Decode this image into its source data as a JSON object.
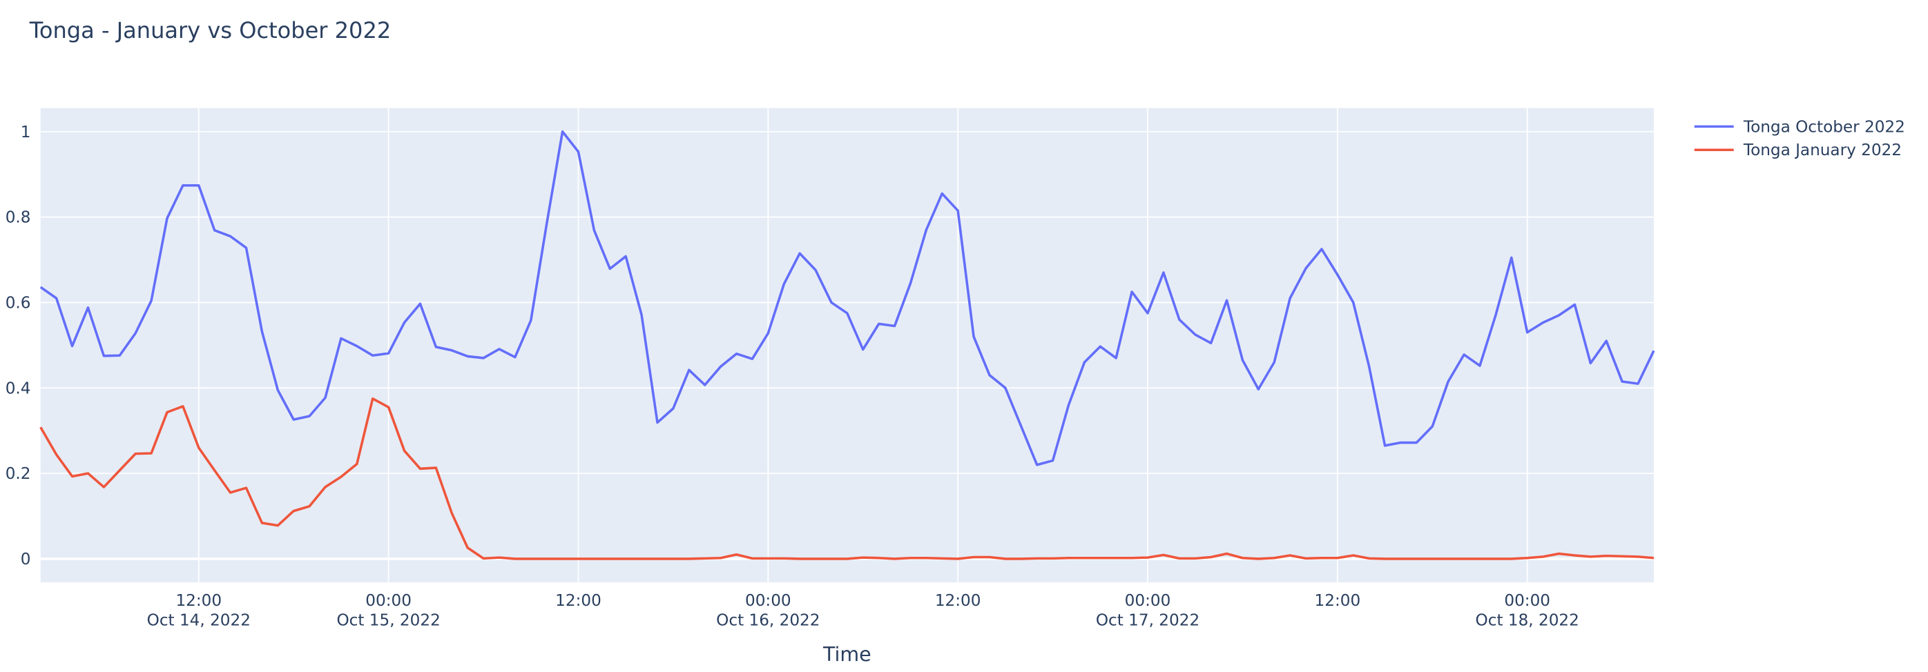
{
  "chart_data": {
    "type": "line",
    "title": "Tonga - January vs October 2022",
    "xlabel": "Time",
    "ylabel": "",
    "xlim": [
      "2022-10-14T02:00",
      "2022-10-18T08:00"
    ],
    "ylim": [
      -0.055,
      1.055
    ],
    "grid": true,
    "legend_position": "top-right, outside plot",
    "plot_background": "#e5ecf6",
    "yticks": [
      0,
      0.2,
      0.4,
      0.6,
      0.8,
      1
    ],
    "ytick_labels": [
      "0",
      "0.2",
      "0.4",
      "0.6",
      "0.8",
      "1"
    ],
    "xticks": [
      {
        "t": "2022-10-14T12:00",
        "line1": "12:00",
        "line2": "Oct 14, 2022"
      },
      {
        "t": "2022-10-15T00:00",
        "line1": "00:00",
        "line2": "Oct 15, 2022"
      },
      {
        "t": "2022-10-15T12:00",
        "line1": "12:00",
        "line2": ""
      },
      {
        "t": "2022-10-16T00:00",
        "line1": "00:00",
        "line2": "Oct 16, 2022"
      },
      {
        "t": "2022-10-16T12:00",
        "line1": "12:00",
        "line2": ""
      },
      {
        "t": "2022-10-17T00:00",
        "line1": "00:00",
        "line2": "Oct 17, 2022"
      },
      {
        "t": "2022-10-17T12:00",
        "line1": "12:00",
        "line2": ""
      },
      {
        "t": "2022-10-18T00:00",
        "line1": "00:00",
        "line2": "Oct 18, 2022"
      }
    ],
    "x": [
      "2022-10-14T02:00",
      "2022-10-14T03:00",
      "2022-10-14T04:00",
      "2022-10-14T05:00",
      "2022-10-14T06:00",
      "2022-10-14T07:00",
      "2022-10-14T08:00",
      "2022-10-14T09:00",
      "2022-10-14T10:00",
      "2022-10-14T11:00",
      "2022-10-14T12:00",
      "2022-10-14T13:00",
      "2022-10-14T14:00",
      "2022-10-14T15:00",
      "2022-10-14T16:00",
      "2022-10-14T17:00",
      "2022-10-14T18:00",
      "2022-10-14T19:00",
      "2022-10-14T20:00",
      "2022-10-14T21:00",
      "2022-10-14T22:00",
      "2022-10-14T23:00",
      "2022-10-15T00:00",
      "2022-10-15T01:00",
      "2022-10-15T02:00",
      "2022-10-15T03:00",
      "2022-10-15T04:00",
      "2022-10-15T05:00",
      "2022-10-15T06:00",
      "2022-10-15T07:00",
      "2022-10-15T08:00",
      "2022-10-15T09:00",
      "2022-10-15T10:00",
      "2022-10-15T11:00",
      "2022-10-15T12:00",
      "2022-10-15T13:00",
      "2022-10-15T14:00",
      "2022-10-15T15:00",
      "2022-10-15T16:00",
      "2022-10-15T17:00",
      "2022-10-15T18:00",
      "2022-10-15T19:00",
      "2022-10-15T20:00",
      "2022-10-15T21:00",
      "2022-10-15T22:00",
      "2022-10-15T23:00",
      "2022-10-16T00:00",
      "2022-10-16T01:00",
      "2022-10-16T02:00",
      "2022-10-16T03:00",
      "2022-10-16T04:00",
      "2022-10-16T05:00",
      "2022-10-16T06:00",
      "2022-10-16T07:00",
      "2022-10-16T08:00",
      "2022-10-16T09:00",
      "2022-10-16T10:00",
      "2022-10-16T11:00",
      "2022-10-16T12:00",
      "2022-10-16T13:00",
      "2022-10-16T14:00",
      "2022-10-16T15:00",
      "2022-10-16T16:00",
      "2022-10-16T17:00",
      "2022-10-16T18:00",
      "2022-10-16T19:00",
      "2022-10-16T20:00",
      "2022-10-16T21:00",
      "2022-10-16T22:00",
      "2022-10-16T23:00",
      "2022-10-17T00:00",
      "2022-10-17T01:00",
      "2022-10-17T02:00",
      "2022-10-17T03:00",
      "2022-10-17T04:00",
      "2022-10-17T05:00",
      "2022-10-17T06:00",
      "2022-10-17T07:00",
      "2022-10-17T08:00",
      "2022-10-17T09:00",
      "2022-10-17T10:00",
      "2022-10-17T11:00",
      "2022-10-17T12:00",
      "2022-10-17T13:00",
      "2022-10-17T14:00",
      "2022-10-17T15:00",
      "2022-10-17T16:00",
      "2022-10-17T17:00",
      "2022-10-17T18:00",
      "2022-10-17T19:00",
      "2022-10-17T20:00",
      "2022-10-17T21:00",
      "2022-10-17T22:00",
      "2022-10-17T23:00",
      "2022-10-18T00:00",
      "2022-10-18T01:00",
      "2022-10-18T02:00",
      "2022-10-18T03:00",
      "2022-10-18T04:00",
      "2022-10-18T05:00",
      "2022-10-18T06:00",
      "2022-10-18T07:00",
      "2022-10-18T08:00"
    ],
    "series": [
      {
        "name": "Tonga October 2022",
        "color": "#636efa",
        "values": [
          0.636,
          0.61,
          0.498,
          0.588,
          0.475,
          0.476,
          0.528,
          0.604,
          0.797,
          0.874,
          0.874,
          0.769,
          0.755,
          0.728,
          0.532,
          0.395,
          0.326,
          0.334,
          0.377,
          0.516,
          0.498,
          0.476,
          0.481,
          0.553,
          0.597,
          0.496,
          0.488,
          0.474,
          0.47,
          0.491,
          0.472,
          0.558,
          0.784,
          1.0,
          0.953,
          0.769,
          0.679,
          0.708,
          0.571,
          0.319,
          0.352,
          0.442,
          0.407,
          0.45,
          0.48,
          0.468,
          0.528,
          0.643,
          0.715,
          0.676,
          0.6,
          0.575,
          0.49,
          0.55,
          0.545,
          0.645,
          0.77,
          0.855,
          0.815,
          0.52,
          0.43,
          0.4,
          0.31,
          0.22,
          0.23,
          0.36,
          0.46,
          0.497,
          0.47,
          0.625,
          0.575,
          0.67,
          0.56,
          0.525,
          0.505,
          0.605,
          0.465,
          0.397,
          0.46,
          0.61,
          0.68,
          0.725,
          0.665,
          0.6,
          0.45,
          0.265,
          0.272,
          0.272,
          0.31,
          0.415,
          0.478,
          0.452,
          0.57,
          0.705,
          0.53,
          0.553,
          0.57,
          0.595,
          0.458,
          0.51,
          0.415,
          0.41,
          0.487
        ]
      },
      {
        "name": "Tonga January 2022",
        "color": "#EF553B",
        "values": [
          0.308,
          0.244,
          0.193,
          0.2,
          0.168,
          0.207,
          0.246,
          0.247,
          0.343,
          0.357,
          0.26,
          0.207,
          0.155,
          0.166,
          0.084,
          0.078,
          0.112,
          0.123,
          0.168,
          0.192,
          0.222,
          0.375,
          0.355,
          0.253,
          0.211,
          0.213,
          0.107,
          0.026,
          0.001,
          0.003,
          0.0,
          0.0,
          0.0,
          0.0,
          0.0,
          0.0,
          0.0,
          0.0,
          0.0,
          0.0,
          0.0,
          0.0,
          0.001,
          0.002,
          0.01,
          0.001,
          0.001,
          0.001,
          0.0,
          0.0,
          0.0,
          0.0,
          0.003,
          0.002,
          0.0,
          0.002,
          0.002,
          0.001,
          0.0,
          0.004,
          0.004,
          0.0,
          0.0,
          0.001,
          0.001,
          0.002,
          0.002,
          0.002,
          0.002,
          0.002,
          0.003,
          0.009,
          0.001,
          0.001,
          0.004,
          0.012,
          0.002,
          0.0,
          0.002,
          0.008,
          0.001,
          0.002,
          0.002,
          0.008,
          0.001,
          0.0,
          0.0,
          0.0,
          0.0,
          0.0,
          0.0,
          0.0,
          0.0,
          0.0,
          0.002,
          0.005,
          0.012,
          0.008,
          0.005,
          0.007,
          0.006,
          0.005,
          0.002
        ]
      }
    ]
  }
}
